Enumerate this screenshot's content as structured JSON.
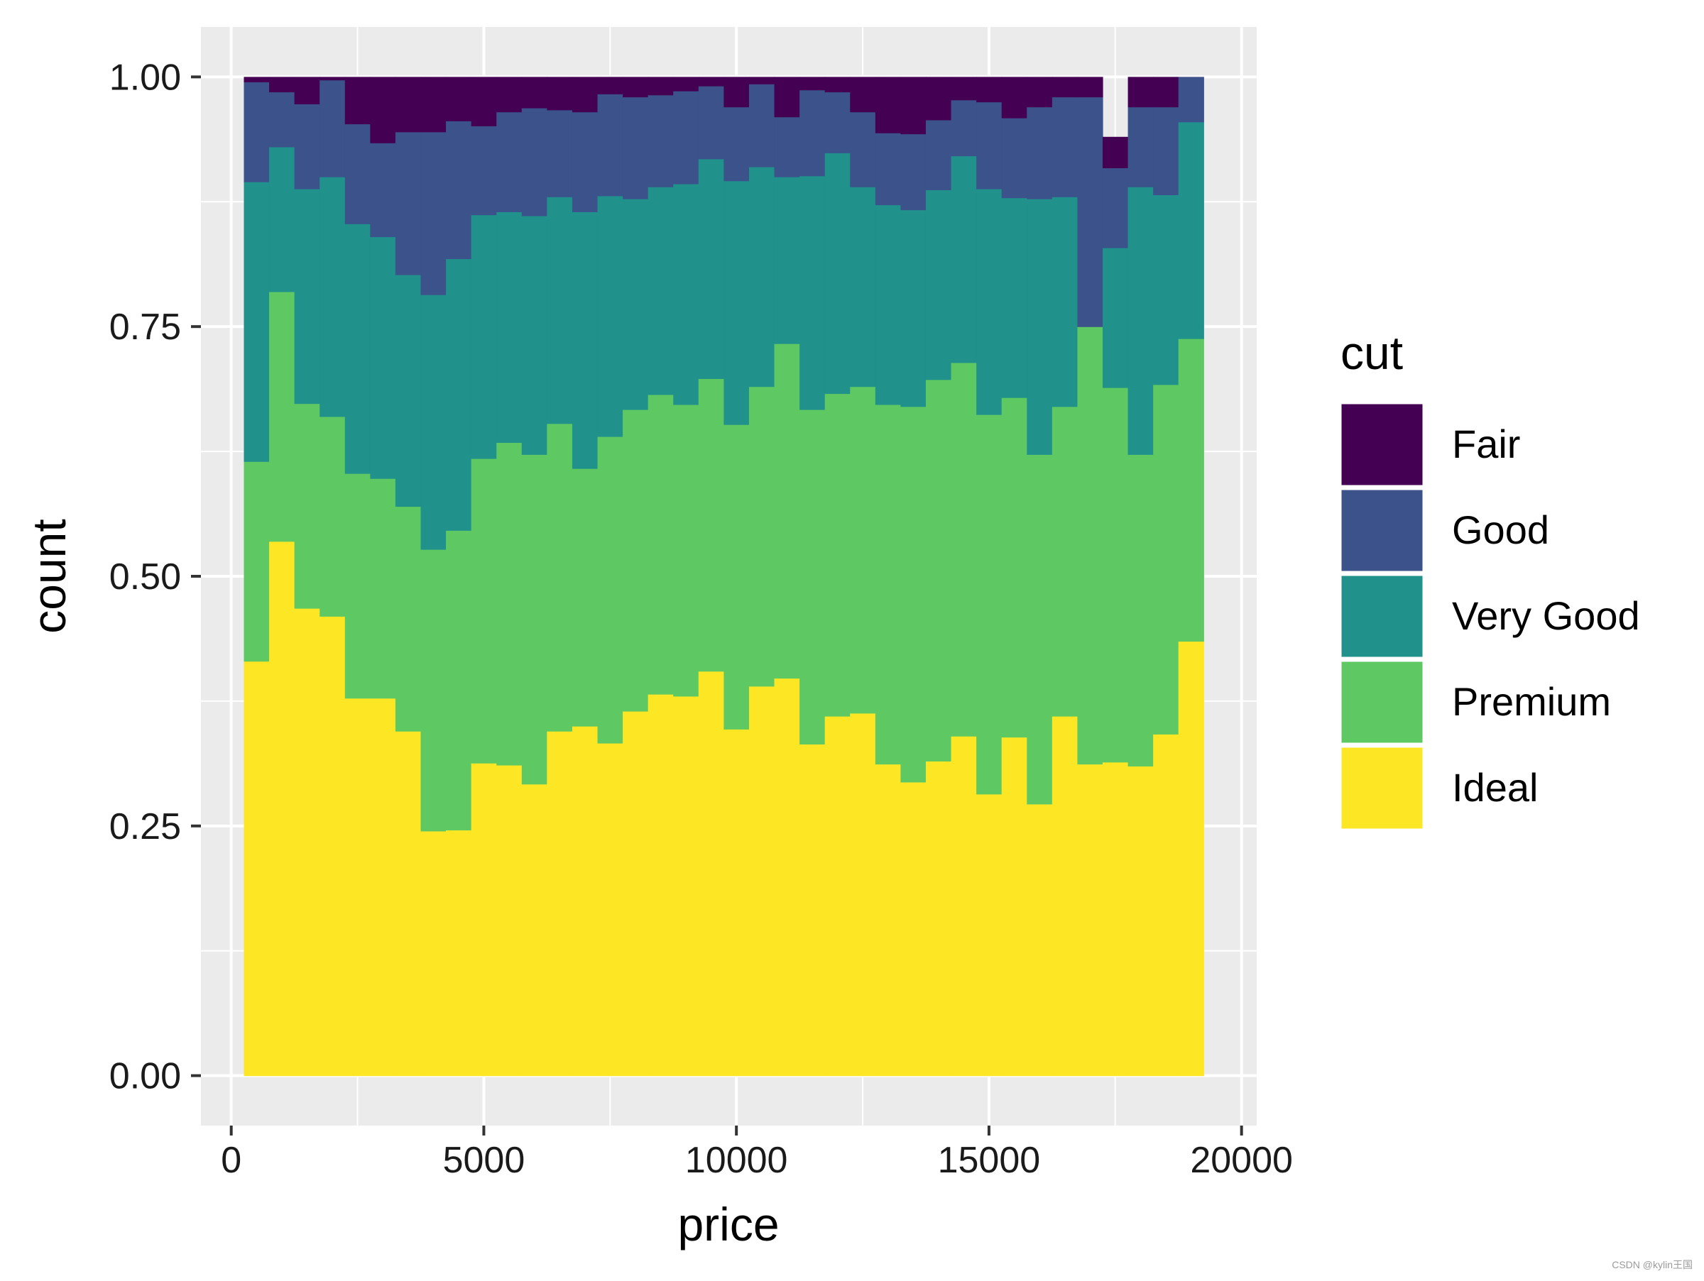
{
  "chart_data": {
    "type": "bar",
    "stacking": "fill",
    "xlabel": "price",
    "ylabel": "count",
    "xlim": [
      -600,
      20300
    ],
    "ylim": [
      -0.05,
      1.05
    ],
    "x_ticks": [
      0,
      5000,
      10000,
      15000,
      20000
    ],
    "x_tick_labels": [
      "0",
      "5000",
      "10000",
      "15000",
      "20000"
    ],
    "y_ticks": [
      0.0,
      0.25,
      0.5,
      0.75,
      1.0
    ],
    "y_tick_labels": [
      "0.00",
      "0.25",
      "0.50",
      "0.75",
      "1.00"
    ],
    "x_minor": [
      2500,
      7500,
      12500,
      17500
    ],
    "y_minor": [
      0.125,
      0.375,
      0.625,
      0.875
    ],
    "grid": true,
    "legend_position": "right",
    "legend_title": "cut",
    "x": [
      500,
      1000,
      1500,
      2000,
      2500,
      3000,
      3500,
      4000,
      4500,
      5000,
      5500,
      6000,
      6500,
      7000,
      7500,
      8000,
      8500,
      9000,
      9500,
      10000,
      10500,
      11000,
      11500,
      12000,
      12500,
      13000,
      13500,
      14000,
      14500,
      15000,
      15500,
      16000,
      16500,
      17000,
      17500,
      18000,
      18500,
      19000
    ],
    "bin_width": 500,
    "series": [
      {
        "name": "Ideal",
        "color": "#fde725",
        "values": [
          0.415,
          0.535,
          0.468,
          0.46,
          0.378,
          0.378,
          0.345,
          0.245,
          0.246,
          0.313,
          0.311,
          0.292,
          0.345,
          0.35,
          0.333,
          0.365,
          0.382,
          0.38,
          0.405,
          0.347,
          0.39,
          0.398,
          0.332,
          0.36,
          0.363,
          0.312,
          0.294,
          0.315,
          0.34,
          0.282,
          0.339,
          0.272,
          0.36,
          0.312,
          0.314,
          0.31,
          0.342,
          0.435
        ]
      },
      {
        "name": "Premium",
        "color": "#5ec962",
        "values": [
          0.2,
          0.25,
          0.205,
          0.2,
          0.225,
          0.22,
          0.225,
          0.282,
          0.3,
          0.305,
          0.323,
          0.33,
          0.308,
          0.258,
          0.307,
          0.302,
          0.3,
          0.292,
          0.293,
          0.305,
          0.3,
          0.335,
          0.335,
          0.323,
          0.327,
          0.36,
          0.376,
          0.382,
          0.374,
          0.38,
          0.34,
          0.35,
          0.31,
          0.438,
          0.375,
          0.312,
          0.35,
          0.303
        ]
      },
      {
        "name": "Very Good",
        "color": "#21918c",
        "values": [
          0.28,
          0.145,
          0.215,
          0.24,
          0.25,
          0.242,
          0.232,
          0.255,
          0.272,
          0.244,
          0.231,
          0.239,
          0.227,
          0.257,
          0.241,
          0.211,
          0.208,
          0.221,
          0.22,
          0.244,
          0.22,
          0.167,
          0.234,
          0.241,
          0.2,
          0.2,
          0.197,
          0.19,
          0.207,
          0.226,
          0.2,
          0.256,
          0.21,
          0.0,
          0.14,
          0.268,
          0.19,
          0.217
        ]
      },
      {
        "name": "Good",
        "color": "#3b528b",
        "values": [
          0.1,
          0.055,
          0.085,
          0.097,
          0.1,
          0.094,
          0.143,
          0.163,
          0.138,
          0.089,
          0.1,
          0.108,
          0.087,
          0.1,
          0.102,
          0.102,
          0.092,
          0.093,
          0.073,
          0.074,
          0.083,
          0.06,
          0.086,
          0.061,
          0.075,
          0.072,
          0.076,
          0.07,
          0.056,
          0.087,
          0.08,
          0.092,
          0.1,
          0.23,
          0.08,
          0.08,
          0.088,
          0.045
        ]
      },
      {
        "name": "Fair",
        "color": "#440154",
        "values": [
          0.005,
          0.015,
          0.027,
          0.003,
          0.047,
          0.066,
          0.055,
          0.055,
          0.044,
          0.049,
          0.035,
          0.031,
          0.033,
          0.035,
          0.017,
          0.02,
          0.018,
          0.014,
          0.009,
          0.03,
          0.007,
          0.04,
          0.013,
          0.015,
          0.035,
          0.056,
          0.057,
          0.043,
          0.023,
          0.025,
          0.041,
          0.03,
          0.02,
          0.02,
          0.031,
          0.03,
          0.03,
          0.0
        ]
      }
    ],
    "legend_order": [
      "Fair",
      "Good",
      "Very Good",
      "Premium",
      "Ideal"
    ]
  },
  "panel_bg": "#ebebeb",
  "grid_color": "#ffffff",
  "text_color": "#1a1a1a",
  "tick_color": "#333333",
  "watermark": "CSDN @kylin王国"
}
